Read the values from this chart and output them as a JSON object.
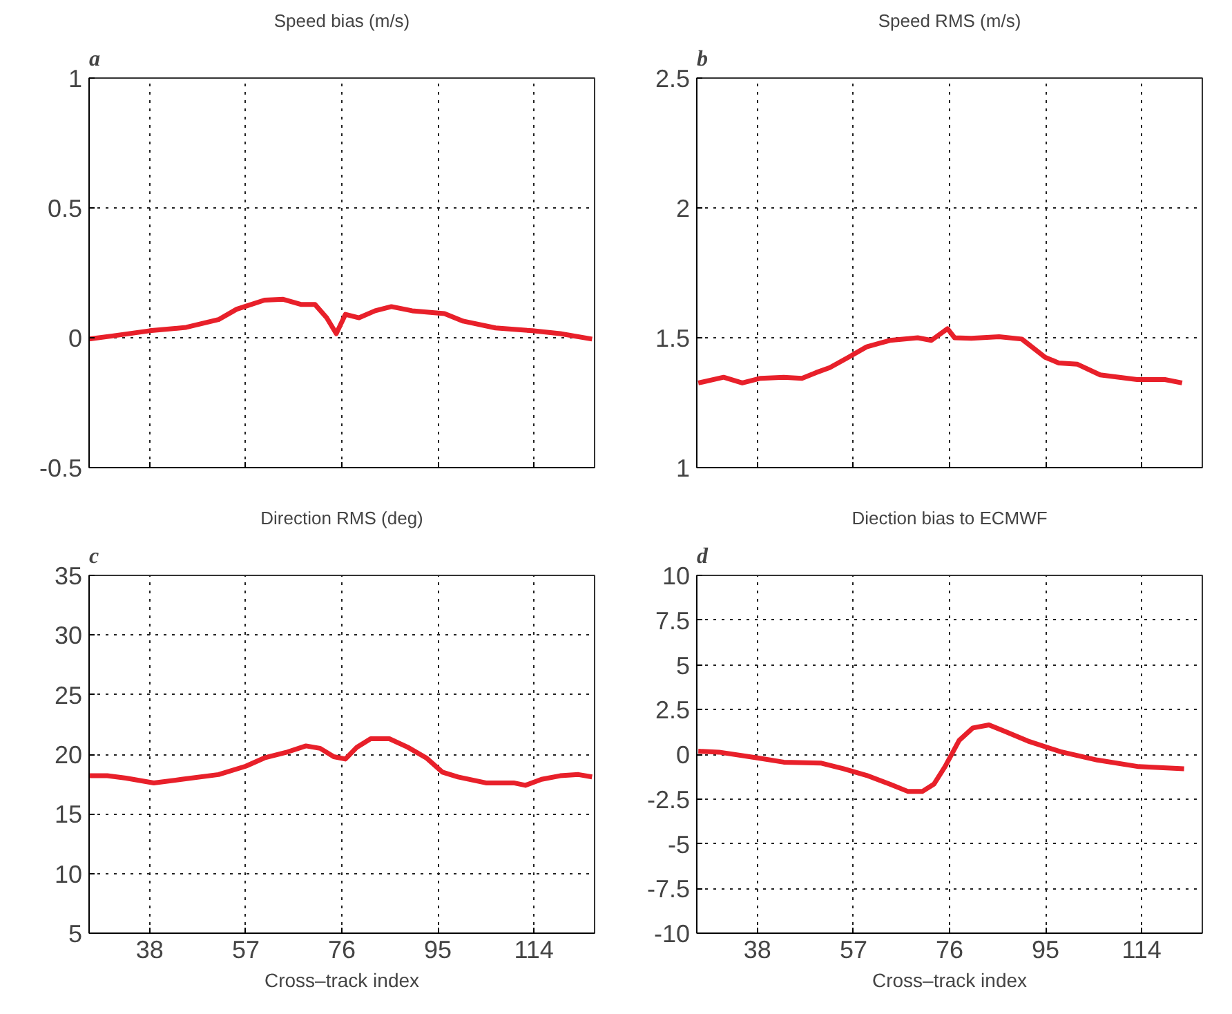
{
  "chart_data": [
    {
      "type": "line",
      "title": "Speed bias (m/s)",
      "annotations": [
        "a"
      ],
      "xlim": [
        26,
        126
      ],
      "xticks": [
        38,
        57,
        76,
        95,
        114
      ],
      "ylim": [
        -0.5,
        1
      ],
      "yticks": [
        -0.5,
        0,
        0.5,
        1
      ],
      "grid": true,
      "tick_labels": "y",
      "line_style": "solid",
      "series": [
        {
          "color": "#e8202a",
          "x": [
            26,
            30.6,
            38,
            45.2,
            51.6,
            55.2,
            60.7,
            64.4,
            68,
            70.7,
            73,
            74.9,
            76.7,
            79.4,
            82.6,
            85.8,
            89.9,
            96.3,
            100,
            106.4,
            113.7,
            119.2,
            125.5
          ],
          "values": [
            -0.005,
            0.007,
            0.027,
            0.04,
            0.07,
            0.11,
            0.145,
            0.148,
            0.128,
            0.128,
            0.077,
            0.016,
            0.09,
            0.077,
            0.104,
            0.12,
            0.104,
            0.093,
            0.064,
            0.038,
            0.027,
            0.016,
            -0.005
          ]
        }
      ]
    },
    {
      "type": "line",
      "title": "Speed RMS (m/s)",
      "annotations": [
        "b"
      ],
      "xlim": [
        26,
        126
      ],
      "xticks": [
        38,
        57,
        76,
        95,
        114
      ],
      "ylim": [
        1,
        2.5
      ],
      "yticks": [
        1,
        1.5,
        2,
        2.5
      ],
      "grid": true,
      "tick_labels": "y",
      "line_style": "solid",
      "series": [
        {
          "color": "#e8202a",
          "x": [
            26.3,
            31.3,
            35,
            38.6,
            43.2,
            46.8,
            49.6,
            52.3,
            56,
            59.6,
            64.2,
            69.7,
            72.4,
            75.6,
            77,
            80.3,
            85.8,
            90.3,
            94.9,
            97.6,
            101.3,
            105.8,
            113.1,
            118.6,
            122
          ],
          "values": [
            1.326,
            1.348,
            1.326,
            1.344,
            1.348,
            1.344,
            1.366,
            1.385,
            1.425,
            1.465,
            1.49,
            1.5,
            1.49,
            1.535,
            1.5,
            1.498,
            1.504,
            1.495,
            1.425,
            1.403,
            1.398,
            1.357,
            1.339,
            1.339,
            1.326
          ]
        }
      ]
    },
    {
      "type": "line",
      "title": "Direction RMS (deg)",
      "annotations": [
        "c"
      ],
      "xlabel": "Cross–track index",
      "xlim": [
        26,
        126
      ],
      "xticks": [
        38,
        57,
        76,
        95,
        114
      ],
      "ylim": [
        5,
        35
      ],
      "yticks": [
        5,
        10,
        15,
        20,
        25,
        30,
        35
      ],
      "grid": true,
      "line_style": "solid",
      "series": [
        {
          "color": "#e8202a",
          "x": [
            26,
            29.6,
            33.3,
            38.8,
            44.3,
            51.6,
            57,
            60.7,
            65.3,
            68.9,
            71.7,
            74.4,
            76.7,
            79,
            81.7,
            85.4,
            89,
            92.7,
            95.9,
            99,
            104.5,
            110,
            112.3,
            115.5,
            119.2,
            122.8,
            125.5
          ],
          "values": [
            18.2,
            18.2,
            18.0,
            17.6,
            17.9,
            18.3,
            19.0,
            19.7,
            20.2,
            20.7,
            20.5,
            19.8,
            19.6,
            20.6,
            21.3,
            21.3,
            20.6,
            19.7,
            18.5,
            18.1,
            17.6,
            17.6,
            17.4,
            17.9,
            18.2,
            18.3,
            18.1
          ]
        }
      ]
    },
    {
      "type": "line",
      "title": "Diection bias to ECMWF",
      "annotations": [
        "d"
      ],
      "xlabel": "Cross–track index",
      "xlim": [
        26,
        126
      ],
      "xticks": [
        38,
        57,
        76,
        95,
        114
      ],
      "ylim": [
        -10,
        10
      ],
      "yticks": [
        -10,
        -7.5,
        -5,
        -2.5,
        0,
        2.5,
        5,
        7.5,
        10
      ],
      "grid": true,
      "line_style": "solid",
      "series": [
        {
          "color": "#e8202a",
          "x": [
            26.3,
            30.4,
            38,
            43.2,
            50.5,
            55,
            59.6,
            64.2,
            67.8,
            70.6,
            72.9,
            75.1,
            77.9,
            80.6,
            83.8,
            87,
            91.5,
            97.9,
            105.2,
            113.4,
            122.4
          ],
          "values": [
            0.17,
            0.12,
            -0.2,
            -0.44,
            -0.49,
            -0.81,
            -1.18,
            -1.67,
            -2.08,
            -2.08,
            -1.67,
            -0.69,
            0.78,
            1.47,
            1.64,
            1.27,
            0.74,
            0.15,
            -0.32,
            -0.69,
            -0.81
          ]
        }
      ]
    }
  ]
}
